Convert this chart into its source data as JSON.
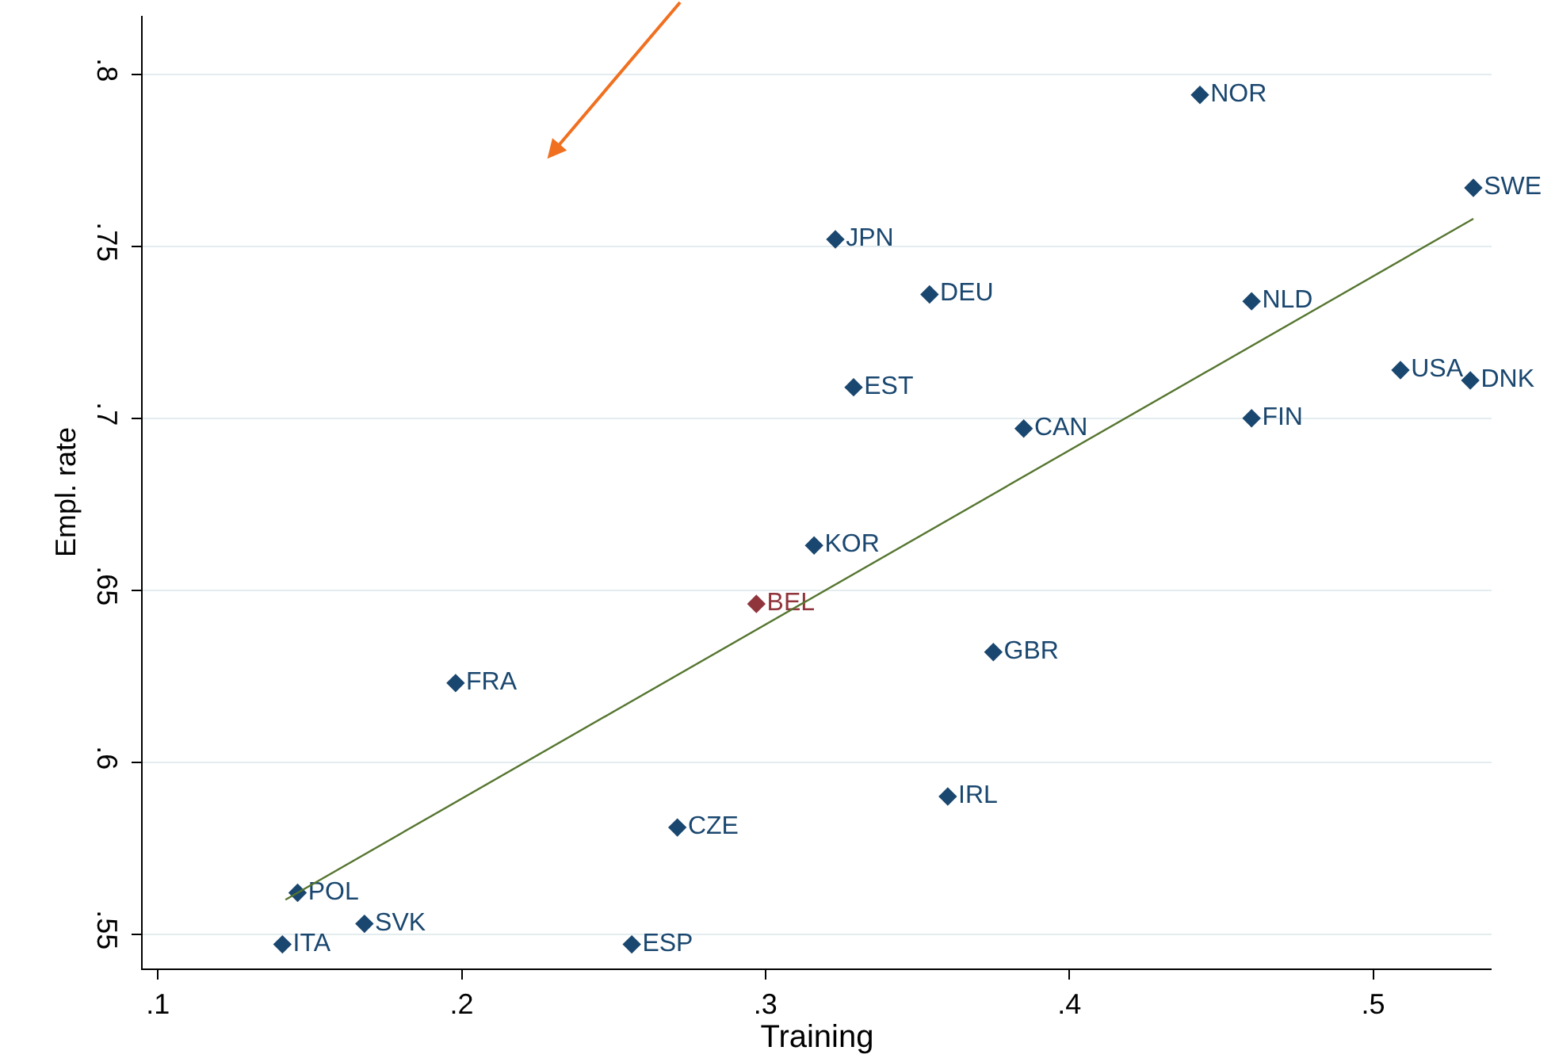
{
  "chart_data": {
    "type": "scatter",
    "xlabel": "Training",
    "ylabel": "Empl. rate",
    "xlim": [
      0.095,
      0.539
    ],
    "ylim": [
      0.54,
      0.817
    ],
    "xticks": [
      {
        "value": 0.1,
        "label": ".1"
      },
      {
        "value": 0.2,
        "label": ".2"
      },
      {
        "value": 0.3,
        "label": ".3"
      },
      {
        "value": 0.4,
        "label": ".4"
      },
      {
        "value": 0.5,
        "label": ".5"
      }
    ],
    "yticks": [
      {
        "value": 0.55,
        "label": ".55"
      },
      {
        "value": 0.6,
        "label": ".6"
      },
      {
        "value": 0.65,
        "label": ".65"
      },
      {
        "value": 0.7,
        "label": ".7"
      },
      {
        "value": 0.75,
        "label": ".75"
      },
      {
        "value": 0.8,
        "label": ".8"
      }
    ],
    "grid": "y",
    "marker": "diamond",
    "series": [
      {
        "color": "#1a476f",
        "x": [
          0.443,
          0.533,
          0.323,
          0.354,
          0.46,
          0.509,
          0.532,
          0.329,
          0.385,
          0.46,
          0.316,
          0.375,
          0.198,
          0.36,
          0.271,
          0.146,
          0.168,
          0.141,
          0.256
        ],
        "values": [
          0.794,
          0.767,
          0.752,
          0.736,
          0.734,
          0.714,
          0.711,
          0.709,
          0.697,
          0.7,
          0.663,
          0.632,
          0.623,
          0.59,
          0.581,
          0.562,
          0.553,
          0.547,
          0.547
        ],
        "value_labels": [
          "NOR",
          "SWE",
          "JPN",
          "DEU",
          "NLD",
          "USA",
          "DNK",
          "EST",
          "CAN",
          "FIN",
          "KOR",
          "GBR",
          "FRA",
          "IRL",
          "CZE",
          "POL",
          "SVK",
          "ITA",
          "ESP"
        ]
      },
      {
        "color": "#90353b",
        "x": [
          0.297
        ],
        "values": [
          0.646
        ],
        "value_labels": [
          "BEL"
        ]
      },
      {
        "type": "line",
        "marker": "none",
        "color": "#55752f",
        "x": [
          0.142,
          0.533
        ],
        "values": [
          0.56,
          0.758
        ]
      }
    ]
  }
}
